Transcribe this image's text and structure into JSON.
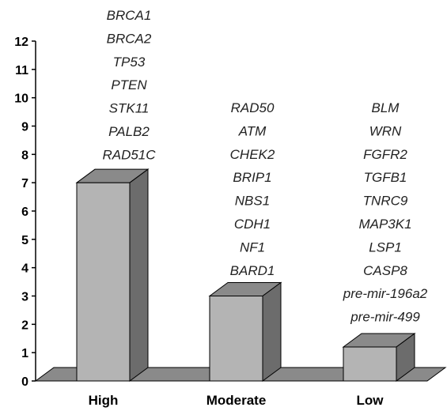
{
  "chart_data": {
    "type": "bar",
    "style": "3d",
    "categories": [
      "High",
      "Moderate",
      "Low"
    ],
    "values": [
      7,
      3,
      1.2
    ],
    "ylim": [
      0,
      12
    ],
    "yticks": [
      "0",
      "1",
      "2",
      "3",
      "4",
      "5",
      "6",
      "7",
      "8",
      "9",
      "10",
      "11",
      "12"
    ],
    "grid": false,
    "legend": "none",
    "annotations": [
      [
        "BRCA1",
        "BRCA2",
        "TP53",
        "PTEN",
        "STK11",
        "PALB2",
        "RAD51C"
      ],
      [
        "RAD50",
        "ATM",
        "CHEK2",
        "BRIP1",
        "NBS1",
        "CDH1",
        "NF1",
        "BARD1"
      ],
      [
        "BLM",
        "WRN",
        "FGFR2",
        "TGFB1",
        "TNRC9",
        "MAP3K1",
        "LSP1",
        "CASP8",
        "pre-mir-196a2",
        "pre-mir-499"
      ]
    ],
    "colors": {
      "bar_front": "#b4b4b4",
      "bar_top": "#8a8a8a",
      "bar_side": "#6c6c6c",
      "floor": "#8a8a8a"
    }
  }
}
